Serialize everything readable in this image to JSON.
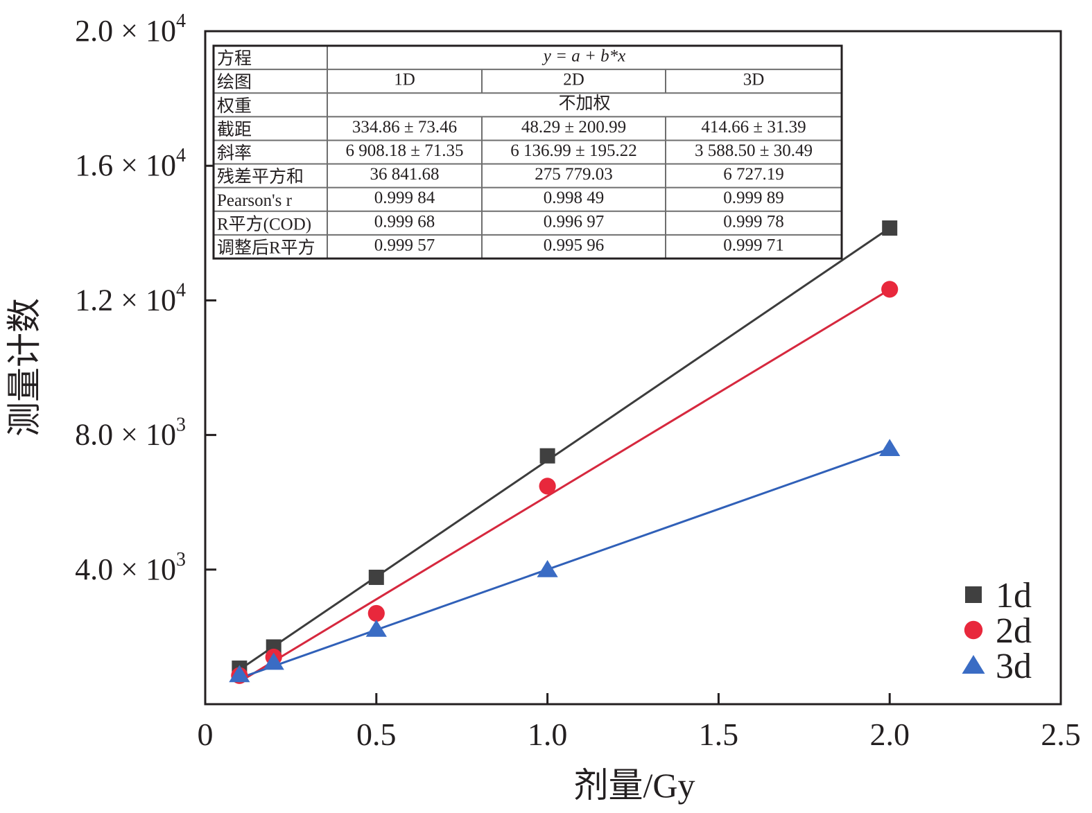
{
  "chart_data": {
    "type": "scatter",
    "xlabel": "剂量/Gy",
    "ylabel": "测量计数",
    "xlim": [
      0,
      2.5
    ],
    "ylim": [
      0,
      20000
    ],
    "x_ticks": [
      0,
      0.5,
      1.0,
      1.5,
      2.0,
      2.5
    ],
    "x_tick_labels": [
      "0",
      "0.5",
      "1.0",
      "1.5",
      "2.0",
      "2.5"
    ],
    "y_ticks": [
      4000,
      8000,
      12000,
      16000,
      20000
    ],
    "y_tick_mantissas": [
      "4.0",
      "8.0",
      "1.2",
      "1.6",
      "2.0"
    ],
    "y_tick_exponents": [
      "3",
      "3",
      "4",
      "4",
      "4"
    ],
    "times_symbol": "×",
    "y_tick_base": "10",
    "legend_position": "bottom-right",
    "series": [
      {
        "name": "1d",
        "marker": "square",
        "color": "#404040",
        "line_color": "#3c3c3c",
        "x": [
          0.1,
          0.2,
          0.5,
          1.0,
          2.0
        ],
        "y": [
          1070,
          1700,
          3770,
          7380,
          14150
        ],
        "fit": {
          "intercept": 334.86,
          "slope": 6908.18
        }
      },
      {
        "name": "2d",
        "marker": "circle",
        "color": "#e8283c",
        "line_color": "#d6283e",
        "x": [
          0.1,
          0.2,
          0.5,
          1.0,
          2.0
        ],
        "y": [
          850,
          1400,
          2700,
          6480,
          12330
        ],
        "fit": {
          "intercept": 48.29,
          "slope": 6136.99
        }
      },
      {
        "name": "3d",
        "marker": "triangle",
        "color": "#3a6cc4",
        "line_color": "#3060b8",
        "x": [
          0.1,
          0.2,
          0.5,
          1.0,
          2.0
        ],
        "y": [
          880,
          1250,
          2230,
          4000,
          7600
        ],
        "fit": {
          "intercept": 414.66,
          "slope": 3588.5
        }
      }
    ],
    "table": {
      "rows": [
        {
          "label": "方程",
          "cells": [
            "y = a + b*x"
          ]
        },
        {
          "label": "绘图",
          "cells": [
            "1D",
            "2D",
            "3D"
          ]
        },
        {
          "label": "权重",
          "cells": [
            "不加权"
          ]
        },
        {
          "label": "截距",
          "cells": [
            "334.86 ± 73.46",
            "48.29 ± 200.99",
            "414.66 ± 31.39"
          ]
        },
        {
          "label": "斜率",
          "cells": [
            "6 908.18 ± 71.35",
            "6 136.99 ± 195.22",
            "3 588.50 ± 30.49"
          ]
        },
        {
          "label": "残差平方和",
          "cells": [
            "36 841.68",
            "275 779.03",
            "6 727.19"
          ]
        },
        {
          "label": "Pearson's r",
          "cells": [
            "0.999 84",
            "0.998 49",
            "0.999 89"
          ]
        },
        {
          "label": "R平方(COD)",
          "cells": [
            "0.999 68",
            "0.996 97",
            "0.999 78"
          ]
        },
        {
          "label": "调整后R平方",
          "cells": [
            "0.999 57",
            "0.995 96",
            "0.999 71"
          ]
        }
      ]
    }
  }
}
